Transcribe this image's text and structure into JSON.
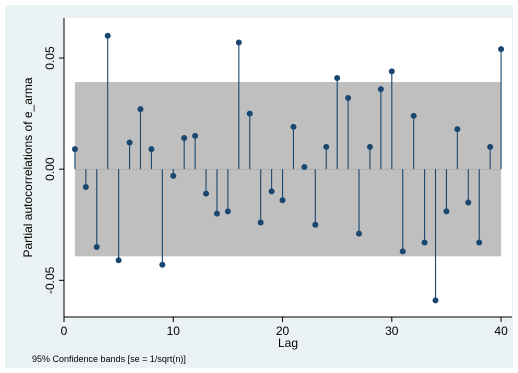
{
  "chart_data": {
    "type": "stem",
    "xlabel": "Lag",
    "ylabel": "Partial autocorrelations of e_arma",
    "note": "95% Confidence bands [se = 1/sqrt(n)]",
    "xlim": [
      0,
      41
    ],
    "ylim": [
      -0.0665,
      0.068
    ],
    "x_ticks": [
      0,
      10,
      20,
      30,
      40
    ],
    "y_ticks": [
      -0.05,
      0.0,
      0.05
    ],
    "y_tick_labels": [
      "-0.05",
      "0.00",
      "0.05"
    ],
    "confidence_band": [
      -0.0392,
      0.0392
    ],
    "lags": [
      1,
      2,
      3,
      4,
      5,
      6,
      7,
      8,
      9,
      10,
      11,
      12,
      13,
      14,
      15,
      16,
      17,
      18,
      19,
      20,
      21,
      22,
      23,
      24,
      25,
      26,
      27,
      28,
      29,
      30,
      31,
      32,
      33,
      34,
      35,
      36,
      37,
      38,
      39,
      40
    ],
    "values": [
      0.009,
      -0.008,
      -0.035,
      0.06,
      -0.041,
      0.012,
      0.027,
      0.009,
      -0.043,
      -0.003,
      0.014,
      0.015,
      -0.011,
      -0.02,
      -0.019,
      0.057,
      0.025,
      -0.024,
      -0.01,
      -0.014,
      0.019,
      0.001,
      -0.025,
      0.01,
      0.041,
      0.032,
      -0.029,
      0.01,
      0.036,
      0.044,
      -0.037,
      0.024,
      -0.033,
      -0.059,
      -0.019,
      0.018,
      -0.015,
      -0.033,
      0.01,
      0.054
    ],
    "colors": {
      "band": "#bfbfbf",
      "stem": "#1a476f",
      "marker": "#1a476f",
      "plot_background": "#ffffff",
      "outer_background": "#eaf2f3"
    }
  }
}
